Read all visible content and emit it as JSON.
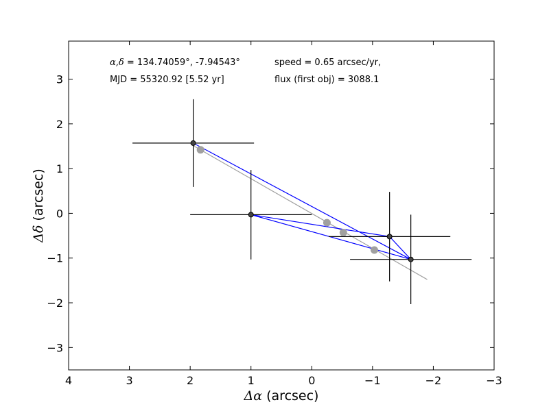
{
  "chart_data": {
    "type": "scatter",
    "xlabel_symbol": "Δα",
    "xlabel_unit": " (arcsec)",
    "ylabel_symbol": "Δδ",
    "ylabel_unit": " (arcsec)",
    "xlim": [
      4,
      -3
    ],
    "ylim": [
      -3.5,
      3.85
    ],
    "x_ticks": [
      4,
      3,
      2,
      1,
      0,
      -1,
      -2,
      -3
    ],
    "x_tick_labels": [
      "4",
      "3",
      "2",
      "1",
      "0",
      "−1",
      "−2",
      "−3"
    ],
    "y_ticks": [
      3,
      2,
      1,
      0,
      -1,
      -2,
      -3
    ],
    "y_tick_labels": [
      "3",
      "2",
      "1",
      "0",
      "−1",
      "−2",
      "−3"
    ],
    "grid": false,
    "annotations": {
      "coords_symbol": "α,δ",
      "coords_value": " = 134.74059°, -7.94543°",
      "mjd": "MJD = 55320.92 [5.52 yr]",
      "speed": "speed = 0.65 arcsec/yr,",
      "flux": "flux (first obj) = 3088.1"
    },
    "observed": {
      "color": "#000000",
      "points": [
        {
          "x": 1.95,
          "y": 1.57,
          "xerr": 1.0,
          "yerr": 0.98
        },
        {
          "x": 1.0,
          "y": -0.03,
          "xerr": 1.0,
          "yerr": 1.0
        },
        {
          "x": -1.28,
          "y": -0.52,
          "xerr": 1.0,
          "yerr": 1.0
        },
        {
          "x": -1.63,
          "y": -1.03,
          "xerr": 1.0,
          "yerr": 1.0
        }
      ]
    },
    "model": {
      "color": "#a0a0a0",
      "points": [
        {
          "x": 1.83,
          "y": 1.42
        },
        {
          "x": -0.25,
          "y": -0.21
        },
        {
          "x": -0.52,
          "y": -0.43
        },
        {
          "x": -1.03,
          "y": -0.82
        }
      ]
    },
    "fit_line": {
      "color": "#a0a0a0",
      "x": [
        1.96,
        -1.9
      ],
      "y": [
        1.52,
        -1.48
      ]
    },
    "connections": {
      "color": "#0000ff",
      "pairs": [
        [
          0,
          3
        ],
        [
          1,
          2
        ],
        [
          1,
          3
        ],
        [
          2,
          3
        ]
      ]
    }
  }
}
